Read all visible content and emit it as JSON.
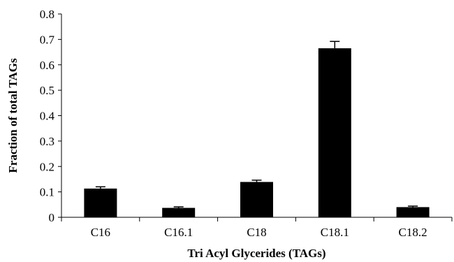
{
  "chart_data": {
    "type": "bar",
    "title": "",
    "xlabel": "Tri Acyl Glycerides (TAGs)",
    "ylabel": "Fraction of total TAGs",
    "ylim": [
      0,
      0.8
    ],
    "yticks": [
      "0",
      "0.1",
      "0.2",
      "0.3",
      "0.4",
      "0.5",
      "0.6",
      "0.7",
      "0.8"
    ],
    "categories": [
      "C16",
      "C16.1",
      "C18",
      "C18.1",
      "C18.2"
    ],
    "values": [
      0.113,
      0.037,
      0.139,
      0.665,
      0.04
    ],
    "errors": [
      0.007,
      0.004,
      0.007,
      0.027,
      0.004
    ],
    "bar_color": "#000000",
    "grid": false,
    "legend": "none"
  }
}
